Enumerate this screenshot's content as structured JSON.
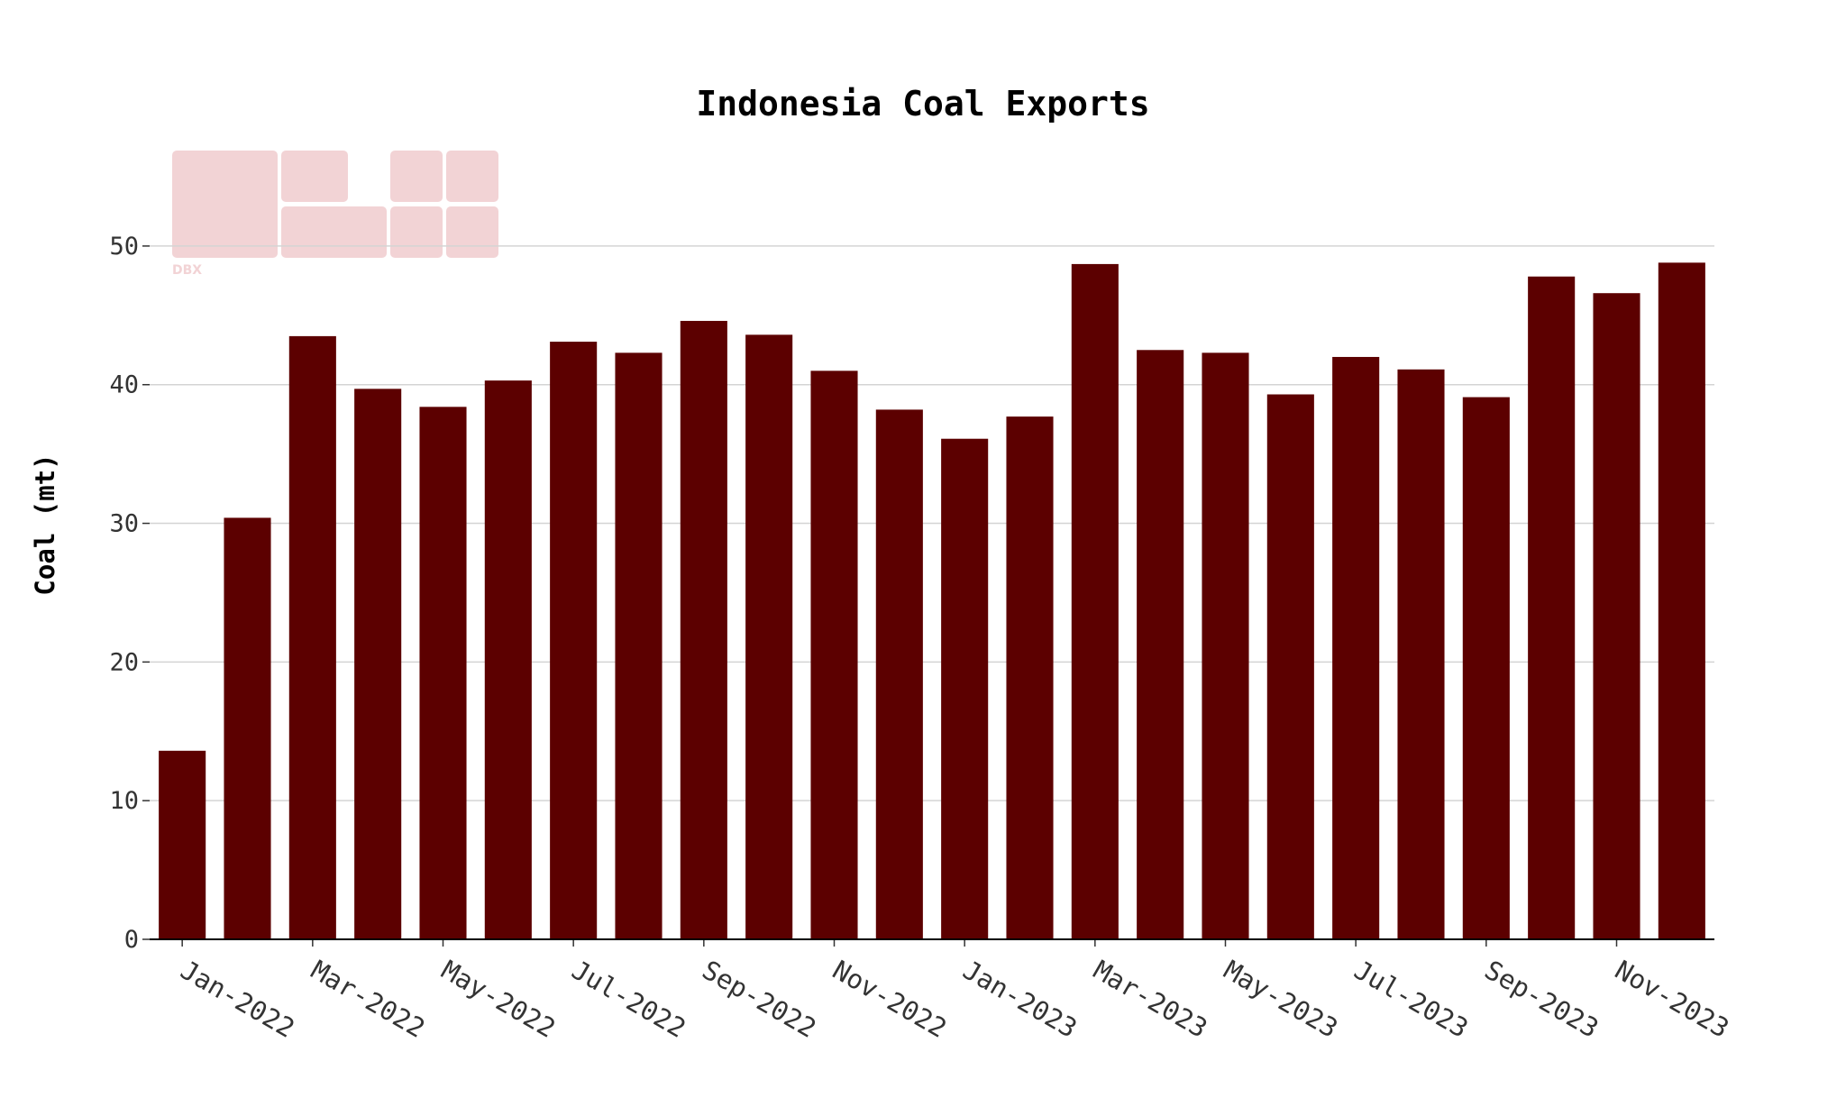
{
  "chart_data": {
    "type": "bar",
    "title": "Indonesia Coal Exports",
    "xlabel": "",
    "ylabel": "Coal (mt)",
    "ylim": [
      0,
      55
    ],
    "yticks": [
      0,
      10,
      20,
      30,
      40,
      50
    ],
    "grid": "horizontal",
    "legend": "none",
    "categories": [
      "Jan-2022",
      "Feb-2022",
      "Mar-2022",
      "Apr-2022",
      "May-2022",
      "Jun-2022",
      "Jul-2022",
      "Aug-2022",
      "Sep-2022",
      "Oct-2022",
      "Nov-2022",
      "Dec-2022",
      "Jan-2023",
      "Feb-2023",
      "Mar-2023",
      "Apr-2023",
      "May-2023",
      "Jun-2023",
      "Jul-2023",
      "Aug-2023",
      "Sep-2023",
      "Oct-2023",
      "Nov-2023",
      "Dec-2023"
    ],
    "x_tick_labels": [
      "Jan-2022",
      "Mar-2022",
      "May-2022",
      "Jul-2022",
      "Sep-2022",
      "Nov-2022",
      "Jan-2023",
      "Mar-2023",
      "May-2023",
      "Jul-2023",
      "Sep-2023",
      "Nov-2023"
    ],
    "values": [
      13.6,
      30.4,
      43.5,
      39.7,
      38.4,
      40.3,
      43.1,
      42.3,
      44.6,
      43.6,
      41.0,
      38.2,
      36.1,
      37.7,
      48.7,
      42.5,
      42.3,
      39.3,
      42.0,
      41.1,
      39.1,
      47.8,
      46.6,
      48.8
    ],
    "bar_color": "#5c0000"
  },
  "watermark": {
    "text": "DBX",
    "color": "#f2d3d5"
  }
}
